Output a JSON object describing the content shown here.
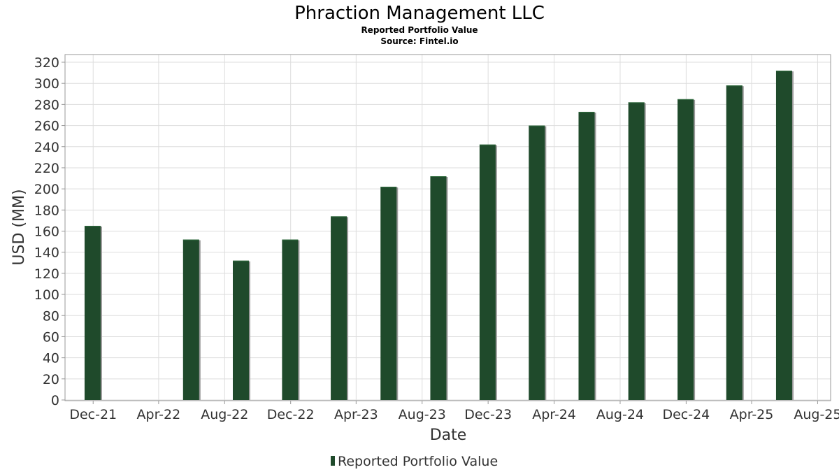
{
  "chart_data": {
    "type": "bar",
    "title": "Phraction Management LLC",
    "subtitles": [
      "Reported Portfolio Value",
      "Source: Fintel.io"
    ],
    "xlabel": "Date",
    "ylabel": "USD (MM)",
    "ylim": [
      0,
      325
    ],
    "yticks": [
      0,
      20,
      40,
      60,
      80,
      100,
      120,
      140,
      160,
      180,
      200,
      220,
      240,
      260,
      280,
      300,
      320
    ],
    "xlim": [
      "2021-10-10",
      "2025-08-25"
    ],
    "xticks": [
      {
        "label": "Dec-21",
        "date": "2021-12-01"
      },
      {
        "label": "Apr-22",
        "date": "2022-04-01"
      },
      {
        "label": "Aug-22",
        "date": "2022-08-01"
      },
      {
        "label": "Dec-22",
        "date": "2022-12-01"
      },
      {
        "label": "Apr-23",
        "date": "2023-04-01"
      },
      {
        "label": "Aug-23",
        "date": "2023-08-01"
      },
      {
        "label": "Dec-23",
        "date": "2023-12-01"
      },
      {
        "label": "Apr-24",
        "date": "2024-04-01"
      },
      {
        "label": "Aug-24",
        "date": "2024-08-01"
      },
      {
        "label": "Dec-24",
        "date": "2024-12-01"
      },
      {
        "label": "Apr-25",
        "date": "2025-04-01"
      },
      {
        "label": "Aug-25",
        "date": "2025-08-01"
      }
    ],
    "grid": true,
    "legend": "bottom-center",
    "series": [
      {
        "name": "Reported Portfolio Value",
        "color": "#1f4a2b",
        "points": [
          {
            "x": "2021-11-30",
            "y": 165
          },
          {
            "x": "2022-05-31",
            "y": 152
          },
          {
            "x": "2022-08-31",
            "y": 132
          },
          {
            "x": "2022-11-30",
            "y": 152
          },
          {
            "x": "2023-02-28",
            "y": 174
          },
          {
            "x": "2023-05-31",
            "y": 202
          },
          {
            "x": "2023-08-31",
            "y": 212
          },
          {
            "x": "2023-11-30",
            "y": 242
          },
          {
            "x": "2024-02-29",
            "y": 260
          },
          {
            "x": "2024-05-31",
            "y": 273
          },
          {
            "x": "2024-08-31",
            "y": 282
          },
          {
            "x": "2024-11-30",
            "y": 285
          },
          {
            "x": "2025-02-28",
            "y": 298
          },
          {
            "x": "2025-05-31",
            "y": 312
          }
        ]
      }
    ]
  }
}
